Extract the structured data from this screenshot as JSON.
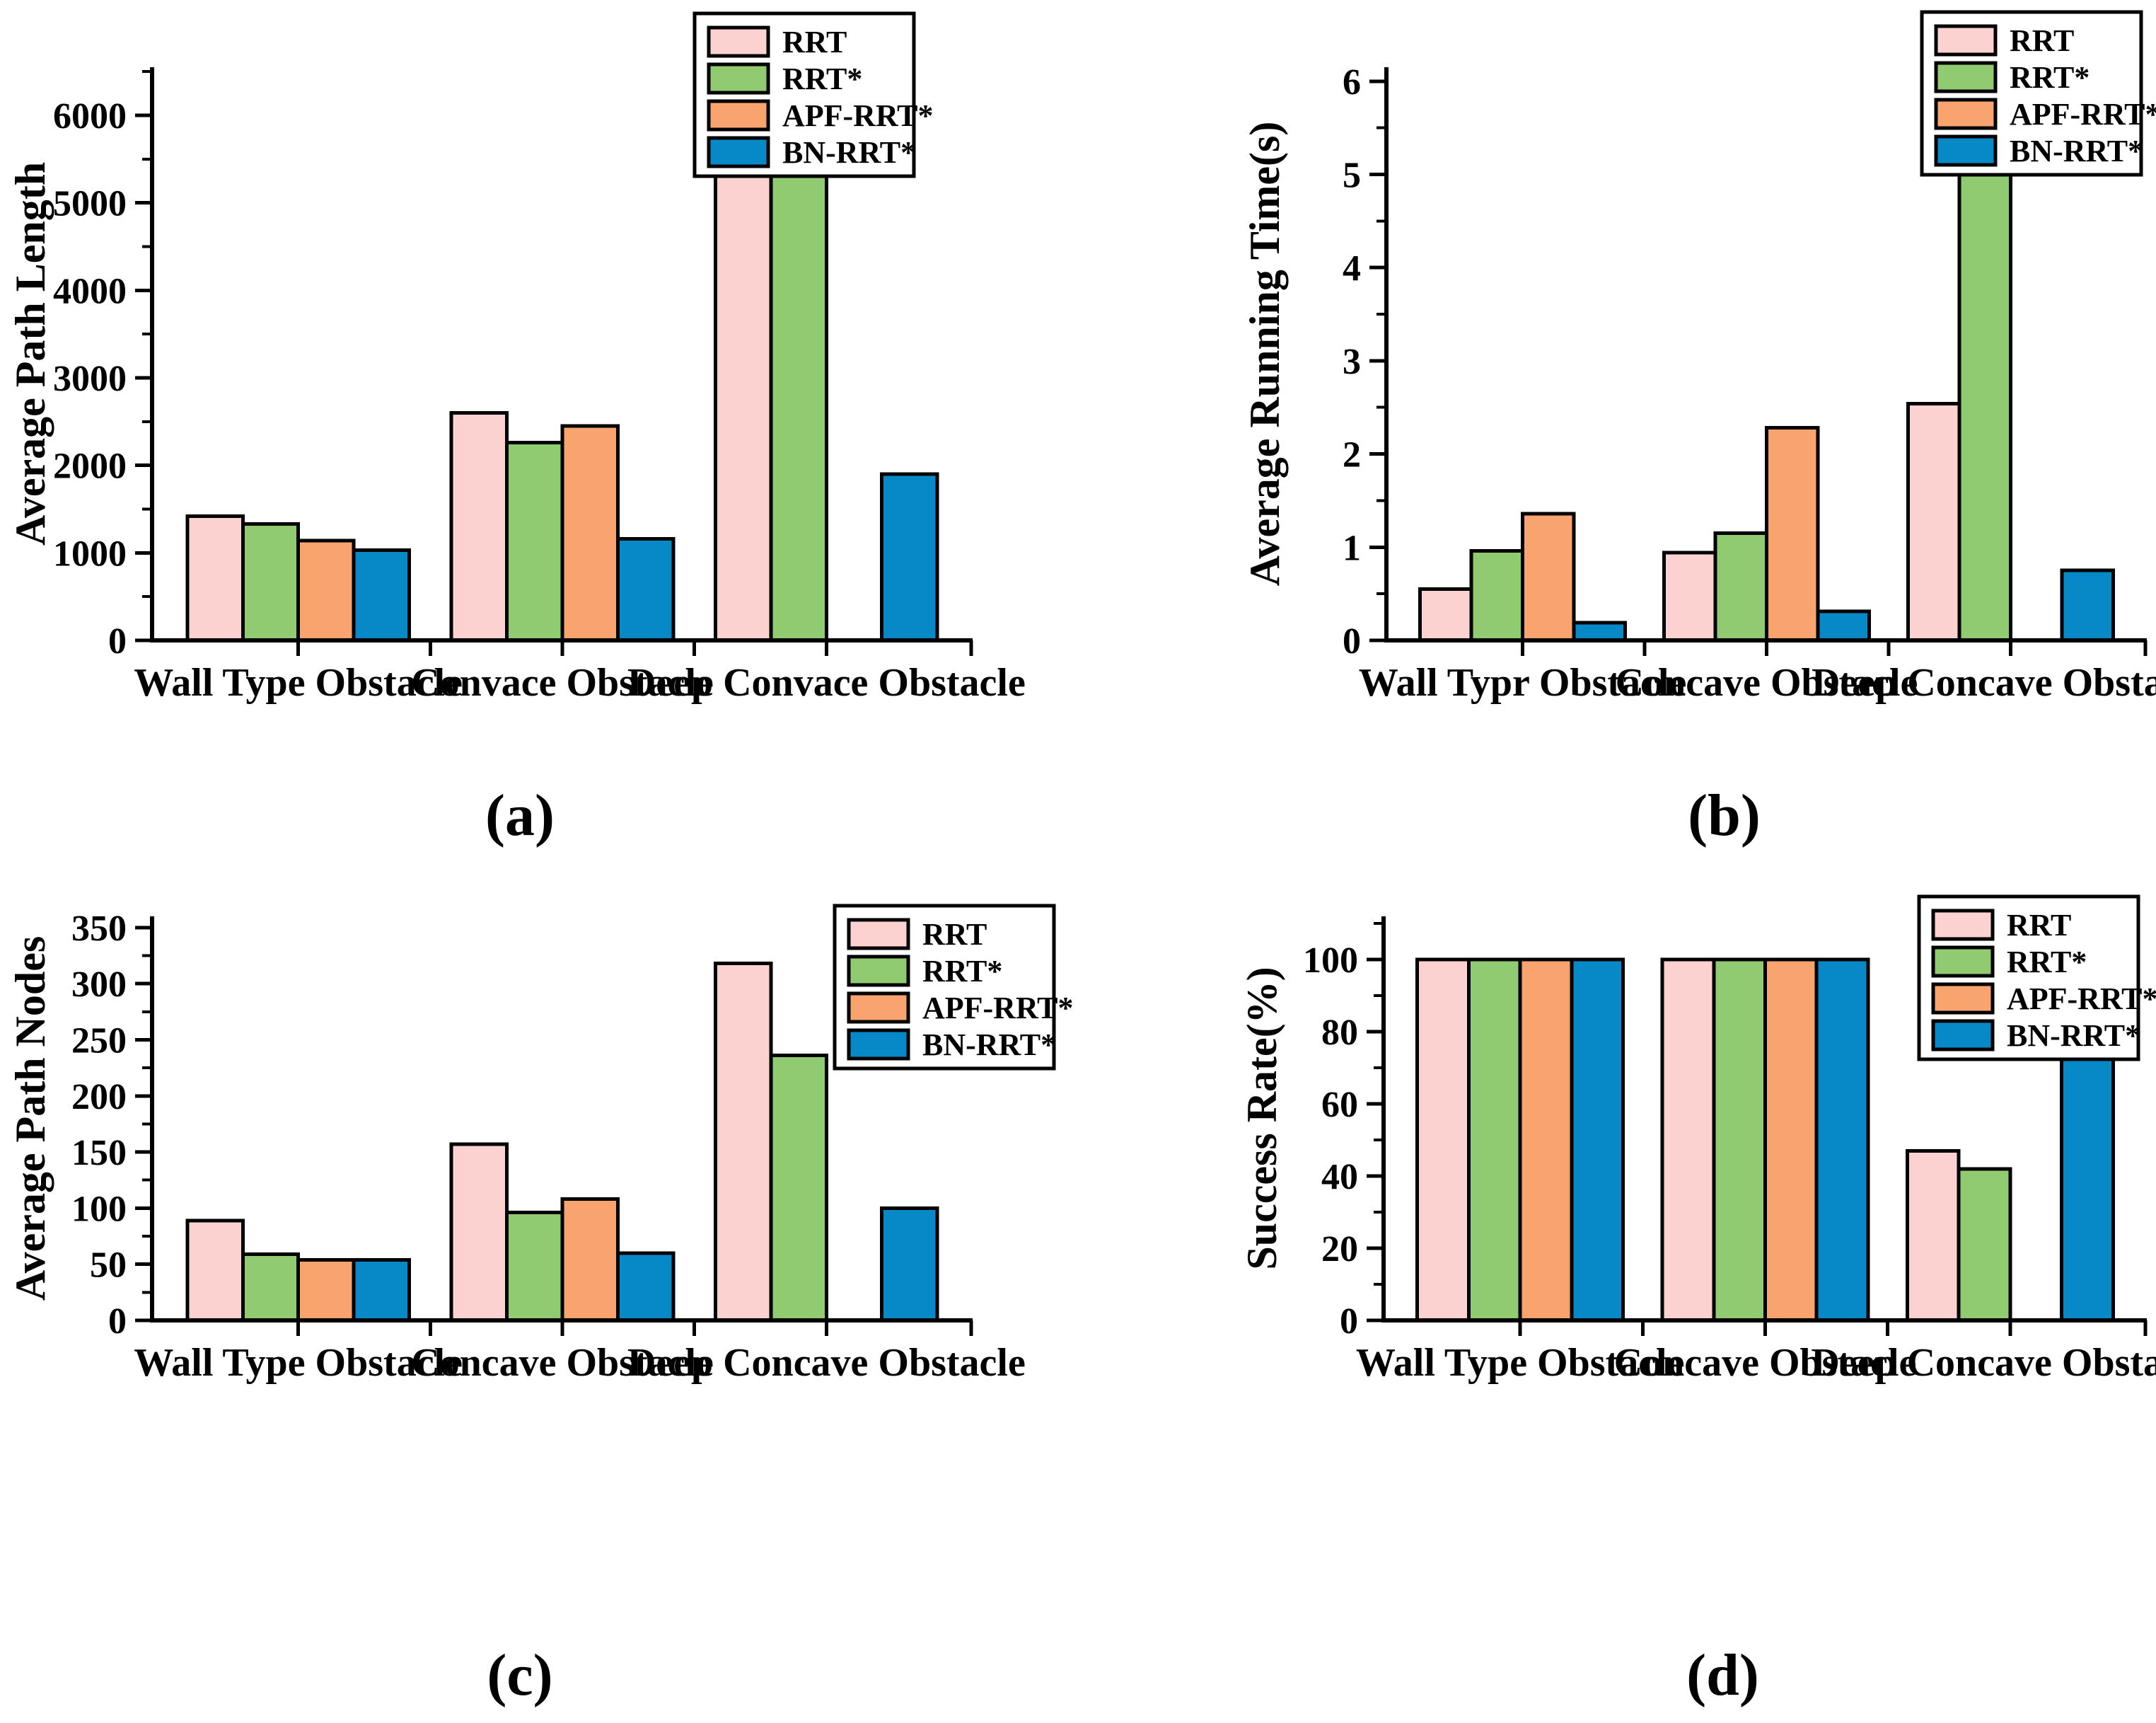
{
  "page": {
    "background": "#ffffff"
  },
  "colors": {
    "RRT": "#FBD2D0",
    "RRT*": "#90CB71",
    "APF-RRT*": "#F9A36E",
    "BN-RRT*": "#0789C7",
    "axis": "#000000",
    "legend_background": "#FFFFFF"
  },
  "legend": {
    "labels": [
      "RRT",
      "RRT*",
      "APF-RRT*",
      "BN-RRT*"
    ]
  },
  "captions": {
    "a": "(a)",
    "b": "(b)",
    "c": "(c)",
    "d": "(d)"
  },
  "chart_data": [
    {
      "id": "a",
      "type": "bar",
      "caption": "(a)",
      "title": "",
      "xlabel": "",
      "ylabel": "Average Path Length",
      "categories": [
        "Wall Type Obstacle",
        "Convace Obstacle",
        "Deep Convace Obstacle"
      ],
      "ylim": [
        0,
        6550
      ],
      "yticks": [
        0,
        1000,
        2000,
        3000,
        4000,
        5000,
        6000
      ],
      "y_minor_step": 500,
      "grid": false,
      "legend_position": "top-right",
      "series": [
        {
          "name": "RRT",
          "values": [
            1420,
            2600,
            5370
          ]
        },
        {
          "name": "RRT*",
          "values": [
            1330,
            2260,
            5830
          ]
        },
        {
          "name": "APF-RRT*",
          "values": [
            1140,
            2450,
            null
          ]
        },
        {
          "name": "BN-RRT*",
          "values": [
            1030,
            1160,
            1900
          ]
        }
      ]
    },
    {
      "id": "b",
      "type": "bar",
      "caption": "(b)",
      "title": "",
      "xlabel": "",
      "ylabel": "Average Running Time(s)",
      "categories": [
        "Wall Typr Obstacle",
        "Concave Obstacle",
        "Deep Concave Obstacle"
      ],
      "ylim": [
        0,
        6.15
      ],
      "yticks": [
        0,
        1,
        2,
        3,
        4,
        5,
        6
      ],
      "y_minor_step": 0.5,
      "grid": false,
      "legend_position": "top-right",
      "series": [
        {
          "name": "RRT",
          "values": [
            0.55,
            0.94,
            2.54
          ]
        },
        {
          "name": "RRT*",
          "values": [
            0.96,
            1.15,
            5.14
          ]
        },
        {
          "name": "APF-RRT*",
          "values": [
            1.36,
            2.28,
            null
          ]
        },
        {
          "name": "BN-RRT*",
          "values": [
            0.19,
            0.31,
            0.75
          ]
        }
      ]
    },
    {
      "id": "c",
      "type": "bar",
      "caption": "(c)",
      "title": "",
      "xlabel": "",
      "ylabel": "Average Path Nodes",
      "categories": [
        "Wall Type Obstacle",
        "Concave Obstacle",
        "Deep Concave Obstacle"
      ],
      "ylim": [
        0,
        360
      ],
      "yticks": [
        0,
        50,
        100,
        150,
        200,
        250,
        300,
        350
      ],
      "y_minor_step": 25,
      "grid": false,
      "legend_position": "top-right",
      "series": [
        {
          "name": "RRT",
          "values": [
            89,
            157,
            318
          ]
        },
        {
          "name": "RRT*",
          "values": [
            59,
            96,
            236
          ]
        },
        {
          "name": "APF-RRT*",
          "values": [
            54,
            108,
            null
          ]
        },
        {
          "name": "BN-RRT*",
          "values": [
            54,
            60,
            100
          ]
        }
      ]
    },
    {
      "id": "d",
      "type": "bar",
      "caption": "(d)",
      "title": "",
      "xlabel": "",
      "ylabel": "Success Rate(%)",
      "categories": [
        "Wall Type Obstacle",
        "Concave Obstacle",
        "Deep Concave Obstacle"
      ],
      "ylim": [
        0,
        112
      ],
      "yticks": [
        0,
        20,
        40,
        60,
        80,
        100
      ],
      "y_minor_step": 10,
      "grid": false,
      "legend_position": "top-right",
      "series": [
        {
          "name": "RRT",
          "values": [
            100,
            100,
            47
          ]
        },
        {
          "name": "RRT*",
          "values": [
            100,
            100,
            42
          ]
        },
        {
          "name": "APF-RRT*",
          "values": [
            100,
            100,
            null
          ]
        },
        {
          "name": "BN-RRT*",
          "values": [
            100,
            100,
            93
          ]
        }
      ]
    }
  ]
}
